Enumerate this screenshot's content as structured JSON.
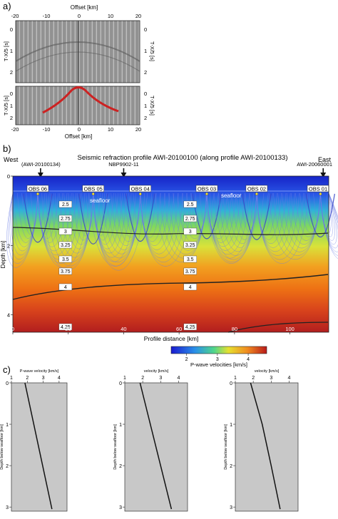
{
  "panel_a": {
    "label": "a)",
    "top_axis": {
      "title": "Offset [km]",
      "ticks": [
        "-20",
        "-10",
        "0",
        "10",
        "20"
      ]
    },
    "bottom_axis": {
      "title": "Offset [km]",
      "ticks": [
        "-20",
        "-10",
        "0",
        "10",
        "20"
      ]
    },
    "upper_left_axis": {
      "title": "T-X/5 [s]",
      "ticks": [
        "0",
        "1",
        "2"
      ]
    },
    "upper_right_axis": {
      "title": "T-X/5 [s]",
      "ticks": [
        "0",
        "1",
        "2"
      ]
    },
    "lower_left_axis": {
      "title": "T-X/5 [s]",
      "ticks": [
        "0",
        "1",
        "2"
      ]
    },
    "lower_right_axis": {
      "title": "T-X/5 [s]",
      "ticks": [
        "0",
        "1",
        "2"
      ]
    }
  },
  "panel_b": {
    "label": "b)",
    "title": "Seismic refraction profile AWI-20100100 (along profile AWI-20100133)",
    "west": "West",
    "east": "East",
    "markers": [
      {
        "label": "(AWI-20100134)",
        "km": 10
      },
      {
        "label": "NBP9902-11",
        "km": 40
      },
      {
        "label": "AWI-20060001",
        "km": 112
      }
    ],
    "obs": [
      {
        "label": "OBS 06",
        "km": 9
      },
      {
        "label": "OBS 05",
        "km": 29
      },
      {
        "label": "OBS 04",
        "km": 46
      },
      {
        "label": "OBS 03",
        "km": 70
      },
      {
        "label": "OBS 02",
        "km": 88
      },
      {
        "label": "OBS 01",
        "km": 111
      }
    ],
    "seafloor_labels": [
      "seafloor",
      "seafloor"
    ],
    "contours_left": [
      "2.5",
      "2.75",
      "3",
      "3.25",
      "3.5",
      "3.75",
      "4",
      "4.25"
    ],
    "contours_right": [
      "2.5",
      "2.75",
      "3",
      "3.25",
      "3.5",
      "3.75",
      "4",
      "4.25"
    ],
    "x_axis": {
      "title": "Profile distance [km]",
      "ticks": [
        "0",
        "20",
        "40",
        "60",
        "80",
        "100"
      ],
      "range": [
        0,
        114
      ]
    },
    "y_axis": {
      "title": "Depth [km]",
      "ticks": [
        "0",
        "2",
        "4"
      ],
      "range": [
        0,
        4.5
      ]
    },
    "colorbar": {
      "title": "P-wave velocities [km/s]",
      "ticks": [
        "2",
        "3",
        "4"
      ],
      "range": [
        1.5,
        4.6
      ]
    }
  },
  "panel_c": {
    "label": "c)",
    "plots": [
      {
        "xlabel": "P-wave velocity [km/s]",
        "ylabel": "Depth below seafloor [km]",
        "x_ticks": [
          "1",
          "2",
          "3",
          "4"
        ],
        "y_ticks": [
          "0",
          "1",
          "2",
          "3"
        ]
      },
      {
        "xlabel": "velocity [km/s]",
        "ylabel": "Depth below seafloor [km]",
        "x_ticks": [
          "1",
          "2",
          "3",
          "4"
        ],
        "y_ticks": [
          "0",
          "1",
          "2",
          "3"
        ]
      },
      {
        "xlabel": "velocity [km/s]",
        "ylabel": "Depth below seafloor [km]",
        "x_ticks": [
          "1",
          "2",
          "3",
          "4"
        ],
        "y_ticks": [
          "0",
          "1",
          "2",
          "3"
        ]
      }
    ]
  },
  "chart_data": [
    {
      "type": "line",
      "panel": "c-1",
      "xlabel": "P-wave velocity [km/s]",
      "ylabel": "Depth below seafloor [km]",
      "xlim": [
        1,
        4.5
      ],
      "ylim": [
        3.1,
        0
      ],
      "series": [
        {
          "x": [
            1.85,
            3.55
          ],
          "y": [
            0,
            3.05
          ]
        }
      ]
    },
    {
      "type": "line",
      "panel": "c-2",
      "xlabel": "velocity [km/s]",
      "ylabel": "Depth below seafloor [km]",
      "xlim": [
        1,
        4.5
      ],
      "ylim": [
        3.1,
        0
      ],
      "series": [
        {
          "x": [
            1.85,
            3.6
          ],
          "y": [
            0,
            3.05
          ]
        }
      ]
    },
    {
      "type": "line",
      "panel": "c-3",
      "xlabel": "velocity [km/s]",
      "ylabel": "Depth below seafloor [km]",
      "xlim": [
        1,
        4.5
      ],
      "ylim": [
        3.1,
        0
      ],
      "series": [
        {
          "x": [
            1.85,
            2.5,
            3.0,
            3.5
          ],
          "y": [
            0,
            1.0,
            2.0,
            3.05
          ]
        }
      ]
    }
  ],
  "colors": {
    "gather_bg": "#9a9a9a",
    "pick_red": "#cc2222",
    "ray_blue": "#5c6fd8",
    "profile_bg_top": "#1a2bd0",
    "panel_c_bg": "#c8c8c8"
  }
}
